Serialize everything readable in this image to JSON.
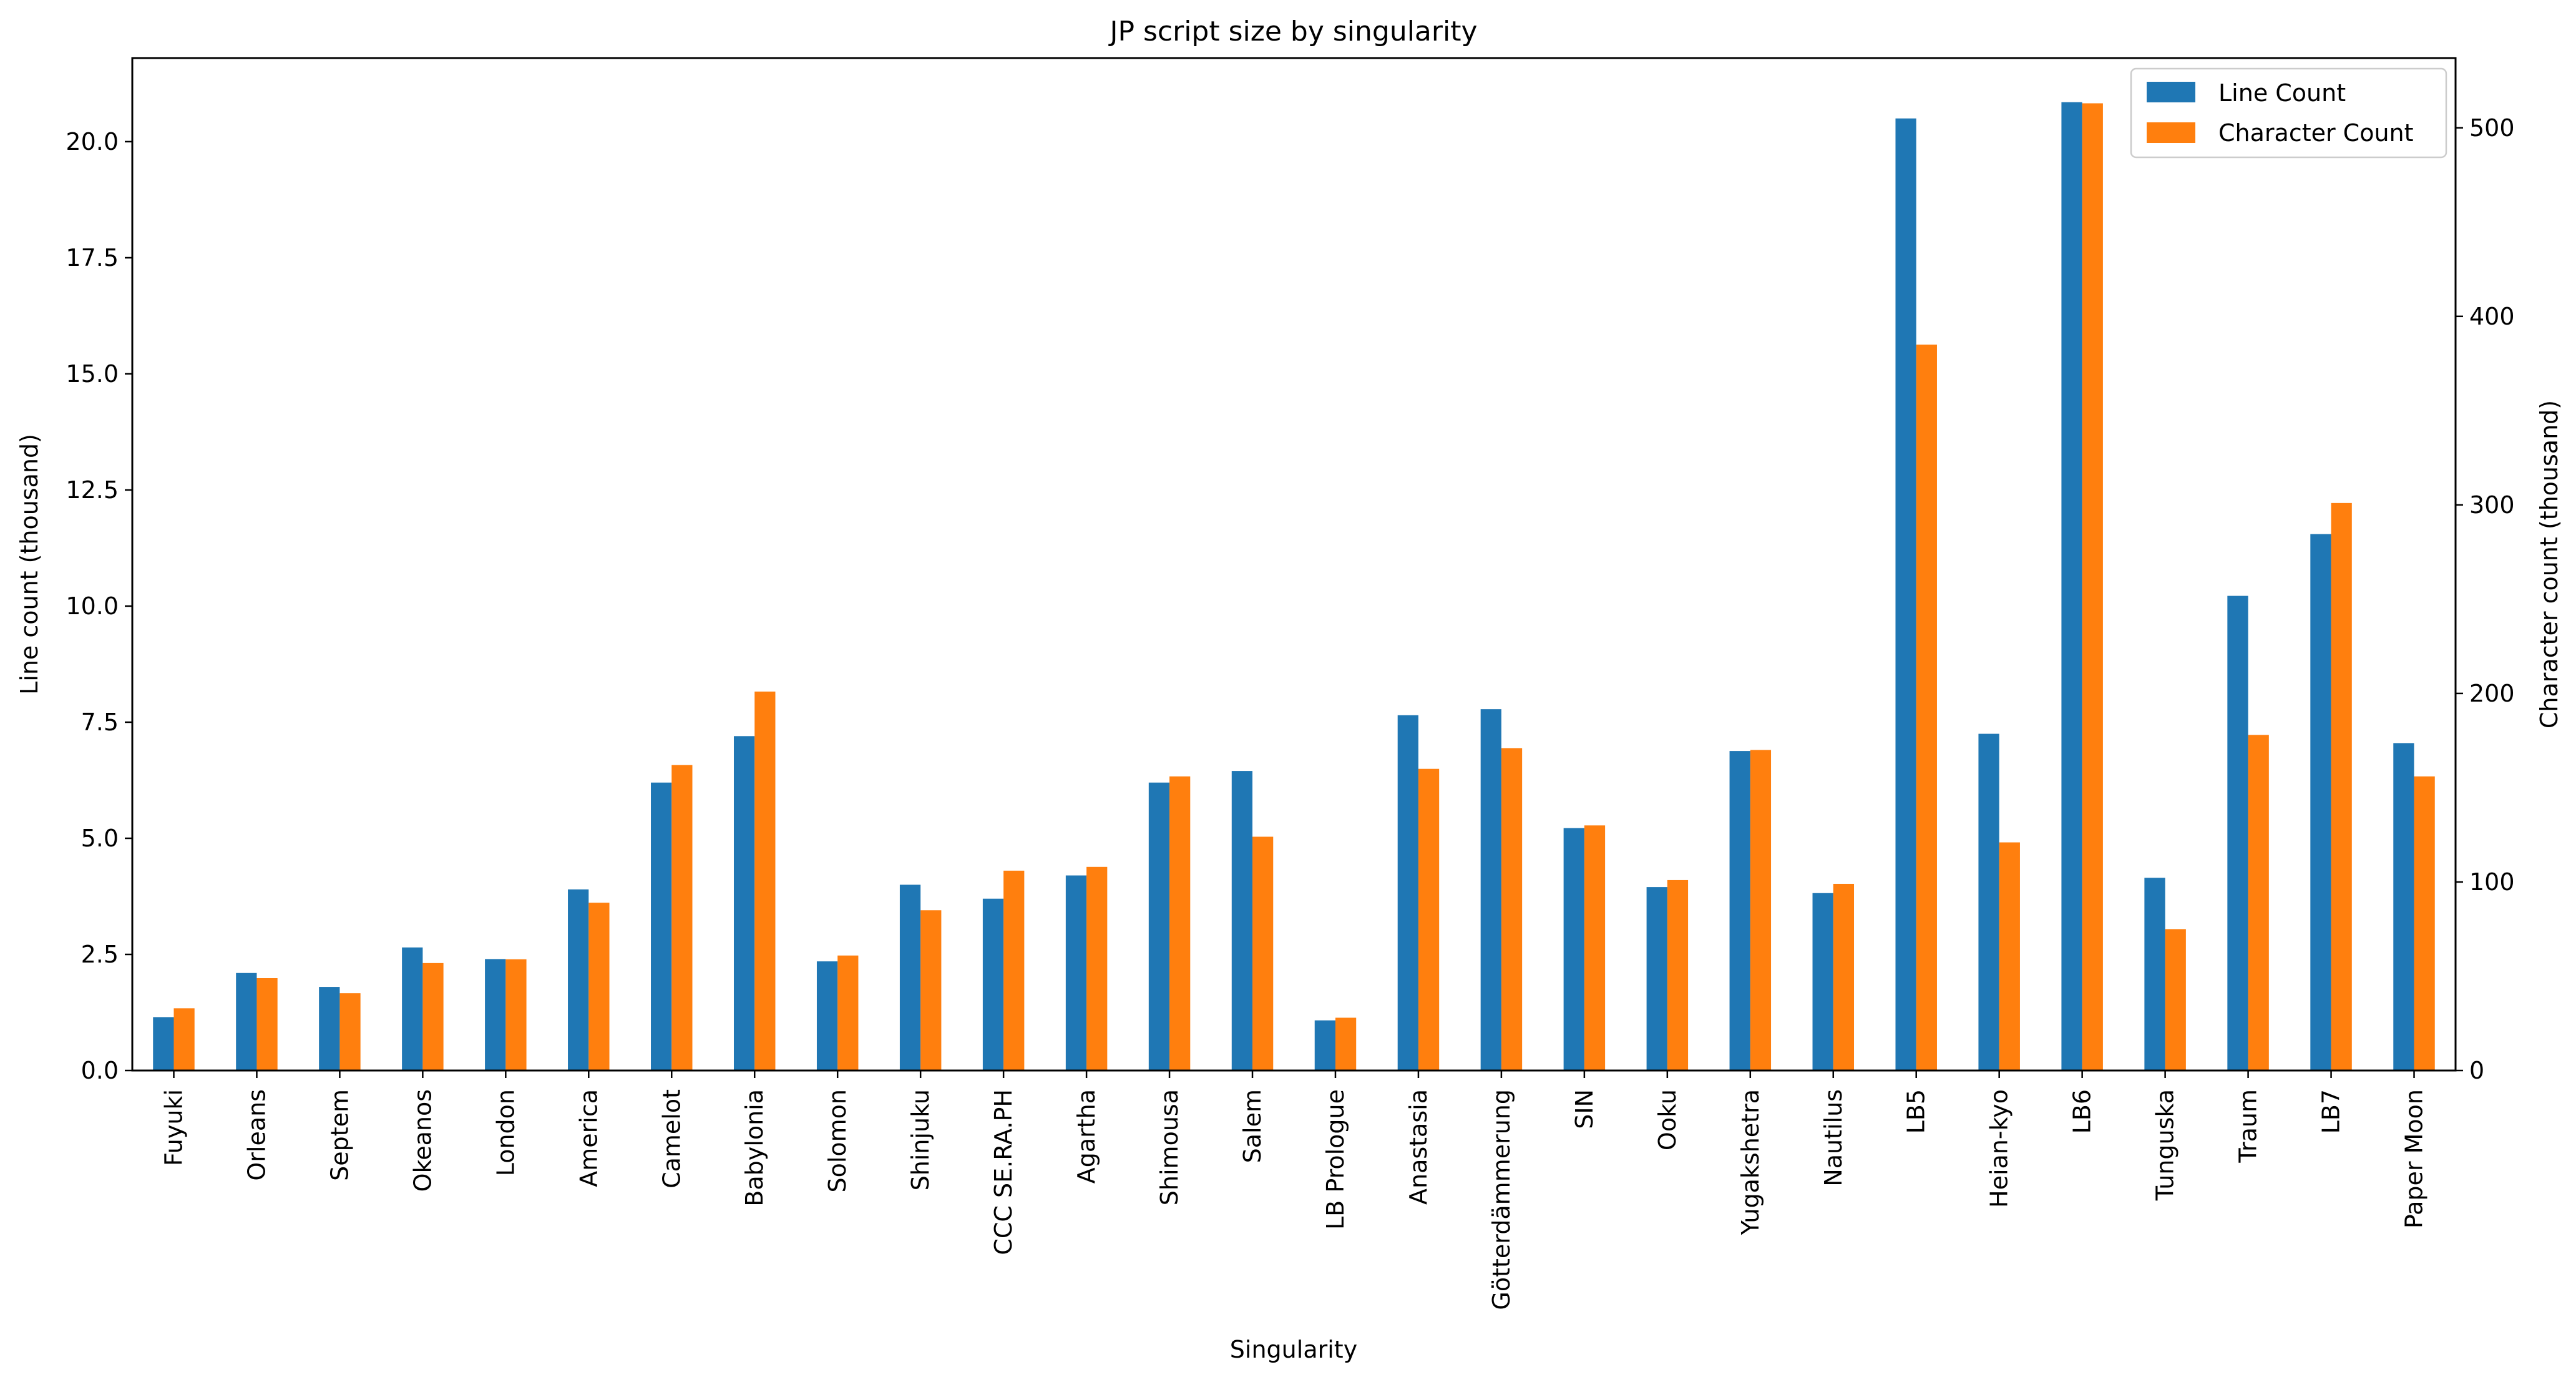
{
  "chart_data": {
    "type": "bar",
    "title": "JP script size by singularity",
    "xlabel": "Singularity",
    "ylabel_left": "Line count (thousand)",
    "ylabel_right": "Character count (thousand)",
    "ylim_left": [
      0,
      21.8
    ],
    "ylim_right": [
      0,
      537
    ],
    "yticks_left": [
      "0.0",
      "2.5",
      "5.0",
      "7.5",
      "10.0",
      "12.5",
      "15.0",
      "17.5",
      "20.0"
    ],
    "yticks_right": [
      "0",
      "100",
      "200",
      "300",
      "400",
      "500"
    ],
    "legend_position": "upper right",
    "grid": false,
    "categories": [
      "Fuyuki",
      "Orleans",
      "Septem",
      "Okeanos",
      "London",
      "America",
      "Camelot",
      "Babylonia",
      "Solomon",
      "Shinjuku",
      "CCC SE.RA.PH",
      "Agartha",
      "Shimousa",
      "Salem",
      "LB Prologue",
      "Anastasia",
      "Götterdämmerung",
      "SIN",
      "Ooku",
      "Yugakshetra",
      "Nautilus",
      "LB5",
      "Heian-kyo",
      "LB6",
      "Tunguska",
      "Traum",
      "LB7",
      "Paper Moon"
    ],
    "series": [
      {
        "name": "Line Count",
        "axis": "left",
        "color": "#1f77b4",
        "values": [
          1.15,
          2.1,
          1.8,
          2.65,
          2.4,
          3.9,
          6.2,
          7.2,
          2.35,
          4.0,
          3.7,
          4.2,
          6.2,
          6.45,
          1.08,
          7.65,
          7.78,
          5.22,
          3.95,
          6.88,
          3.82,
          20.5,
          7.25,
          20.85,
          4.15,
          10.22,
          11.55,
          7.05
        ]
      },
      {
        "name": "Character Count",
        "axis": "right",
        "color": "#ff7f0e",
        "values": [
          33,
          49,
          41,
          57,
          59,
          89,
          162,
          201,
          61,
          85,
          106,
          108,
          156,
          124,
          28,
          160,
          171,
          130,
          101,
          170,
          99,
          385,
          121,
          513,
          75,
          178,
          301,
          156
        ]
      }
    ]
  }
}
